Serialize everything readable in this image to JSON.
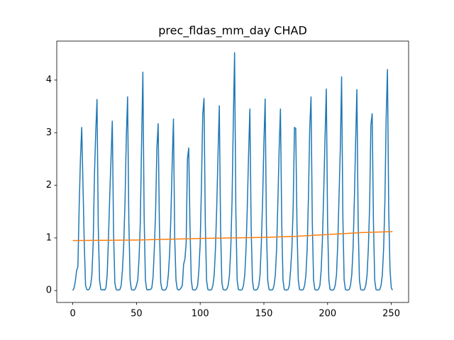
{
  "chart_data": {
    "type": "line",
    "title": "prec_fldas_mm_day CHAD",
    "x": [
      0,
      1,
      2,
      3,
      4,
      5,
      6,
      7,
      8,
      9,
      10,
      11,
      12,
      13,
      14,
      15,
      16,
      17,
      18,
      19,
      20,
      21,
      22,
      23,
      24,
      25,
      26,
      27,
      28,
      29,
      30,
      31,
      32,
      33,
      34,
      35,
      36,
      37,
      38,
      39,
      40,
      41,
      42,
      43,
      44,
      45,
      46,
      47,
      48,
      49,
      50,
      51,
      52,
      53,
      54,
      55,
      56,
      57,
      58,
      59,
      60,
      61,
      62,
      63,
      64,
      65,
      66,
      67,
      68,
      69,
      70,
      71,
      72,
      73,
      74,
      75,
      76,
      77,
      78,
      79,
      80,
      81,
      82,
      83,
      84,
      85,
      86,
      87,
      88,
      89,
      90,
      91,
      92,
      93,
      94,
      95,
      96,
      97,
      98,
      99,
      100,
      101,
      102,
      103,
      104,
      105,
      106,
      107,
      108,
      109,
      110,
      111,
      112,
      113,
      114,
      115,
      116,
      117,
      118,
      119,
      120,
      121,
      122,
      123,
      124,
      125,
      126,
      127,
      128,
      129,
      130,
      131,
      132,
      133,
      134,
      135,
      136,
      137,
      138,
      139,
      140,
      141,
      142,
      143,
      144,
      145,
      146,
      147,
      148,
      149,
      150,
      151,
      152,
      153,
      154,
      155,
      156,
      157,
      158,
      159,
      160,
      161,
      162,
      163,
      164,
      165,
      166,
      167,
      168,
      169,
      170,
      171,
      172,
      173,
      174,
      175,
      176,
      177,
      178,
      179,
      180,
      181,
      182,
      183,
      184,
      185,
      186,
      187,
      188,
      189,
      190,
      191,
      192,
      193,
      194,
      195,
      196,
      197,
      198,
      199,
      200,
      201,
      202,
      203,
      204,
      205,
      206,
      207,
      208,
      209,
      210,
      211,
      212,
      213,
      214,
      215,
      216,
      217,
      218,
      219,
      220,
      221,
      222,
      223,
      224,
      225,
      226,
      227,
      228,
      229,
      230,
      231,
      232,
      233,
      234,
      235,
      236,
      237,
      238,
      239,
      240,
      241,
      242,
      243,
      244,
      245,
      246,
      247,
      248,
      249,
      250,
      251
    ],
    "series": [
      {
        "color": "#1f77b4",
        "values": [
          0.0,
          0.05,
          0.18,
          0.38,
          0.45,
          1.6,
          2.5,
          3.1,
          2.0,
          0.9,
          0.1,
          0.02,
          0.01,
          0.03,
          0.1,
          0.3,
          0.9,
          2.2,
          3.0,
          3.63,
          1.2,
          0.2,
          0.02,
          0.01,
          0.02,
          0.01,
          0.05,
          0.3,
          1.0,
          1.8,
          2.5,
          3.22,
          1.1,
          0.15,
          0.02,
          0.01,
          0.01,
          0.02,
          0.1,
          0.4,
          0.9,
          1.7,
          2.9,
          3.68,
          1.3,
          0.2,
          0.02,
          0.01,
          0.01,
          0.03,
          0.1,
          0.2,
          0.6,
          1.3,
          2.8,
          4.15,
          1.4,
          0.2,
          0.02,
          0.01,
          0.02,
          0.02,
          0.05,
          0.25,
          0.8,
          1.5,
          2.7,
          3.17,
          1.2,
          0.15,
          0.02,
          0.01,
          0.01,
          0.02,
          0.08,
          0.3,
          0.7,
          1.4,
          2.4,
          3.26,
          1.0,
          0.2,
          0.03,
          0.01,
          0.02,
          0.05,
          0.1,
          0.5,
          0.6,
          0.9,
          2.5,
          2.71,
          1.2,
          0.2,
          0.02,
          0.01,
          0.01,
          0.03,
          0.1,
          0.4,
          0.9,
          2.0,
          3.35,
          3.65,
          1.3,
          0.2,
          0.02,
          0.01,
          0.01,
          0.02,
          0.1,
          0.3,
          0.8,
          1.6,
          2.6,
          3.51,
          1.2,
          0.15,
          0.02,
          0.01,
          0.01,
          0.03,
          0.1,
          0.3,
          0.8,
          1.7,
          3.2,
          4.52,
          1.5,
          0.2,
          0.02,
          0.01,
          0.01,
          0.02,
          0.1,
          0.3,
          0.8,
          1.6,
          2.6,
          3.45,
          1.2,
          0.2,
          0.02,
          0.01,
          0.01,
          0.03,
          0.1,
          0.3,
          0.9,
          1.7,
          2.8,
          3.64,
          1.2,
          0.2,
          0.02,
          0.01,
          0.01,
          0.02,
          0.1,
          0.3,
          0.8,
          1.7,
          2.7,
          3.45,
          1.3,
          0.2,
          0.02,
          0.01,
          0.01,
          0.02,
          0.1,
          0.4,
          0.8,
          1.6,
          3.1,
          3.08,
          1.2,
          0.2,
          0.02,
          0.01,
          0.01,
          0.02,
          0.1,
          0.3,
          0.8,
          1.8,
          3.1,
          3.68,
          1.3,
          0.2,
          0.02,
          0.01,
          0.01,
          0.03,
          0.1,
          0.4,
          1.0,
          1.9,
          2.9,
          3.83,
          1.3,
          0.2,
          0.02,
          0.01,
          0.01,
          0.02,
          0.1,
          0.3,
          0.9,
          1.8,
          2.7,
          4.06,
          1.4,
          0.2,
          0.02,
          0.01,
          0.01,
          0.02,
          0.1,
          0.3,
          0.8,
          1.7,
          2.8,
          3.82,
          1.3,
          0.2,
          0.02,
          0.01,
          0.01,
          0.02,
          0.1,
          0.3,
          0.8,
          1.6,
          3.15,
          3.36,
          1.3,
          0.2,
          0.02,
          0.01,
          0.01,
          0.02,
          0.1,
          0.3,
          0.8,
          1.7,
          3.3,
          4.2,
          1.5,
          0.4,
          0.05,
          0.01
        ]
      },
      {
        "color": "#ff7f0e",
        "x": [
          0,
          25,
          50,
          75,
          100,
          125,
          150,
          175,
          200,
          225,
          251
        ],
        "values": [
          0.95,
          0.955,
          0.96,
          0.975,
          0.99,
          1.0,
          1.01,
          1.03,
          1.065,
          1.1,
          1.12
        ]
      }
    ],
    "xlim": [
      -12.6,
      263.6
    ],
    "ylim": [
      -0.226,
      4.74
    ],
    "xticks": [
      0,
      50,
      100,
      150,
      200,
      250
    ],
    "yticks": [
      0,
      1,
      2,
      3,
      4
    ],
    "grid": false
  }
}
